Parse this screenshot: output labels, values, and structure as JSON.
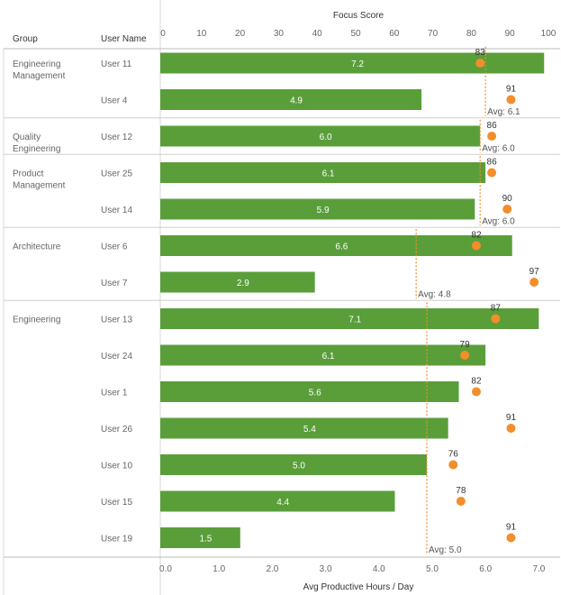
{
  "headers": {
    "group": "Group",
    "user_name": "User Name",
    "top_axis_title": "Focus Score",
    "bottom_axis_title": "Avg Productive Hours / Day"
  },
  "chart_data": {
    "type": "bar",
    "title": "",
    "xlabel": "Avg Productive Hours / Day",
    "x2label": "Focus Score",
    "xlim": [
      0,
      7.3
    ],
    "x2lim": [
      0,
      100
    ],
    "x_ticks": [
      "0.0",
      "1.0",
      "2.0",
      "3.0",
      "4.0",
      "5.0",
      "6.0",
      "7.0"
    ],
    "x2_ticks": [
      "0",
      "10",
      "20",
      "30",
      "40",
      "50",
      "60",
      "70",
      "80",
      "90",
      "100"
    ],
    "colors": {
      "bar": "#5a9e3a",
      "point": "#f28e2b",
      "avg_line": "#f28e2b",
      "grid": "#d9d9d9"
    },
    "groups": [
      {
        "name": "Engineering\nManagement",
        "avg_label": "Avg: 6.1",
        "avg_value": 6.1,
        "users": [
          {
            "user": "User 11",
            "hours": 7.2,
            "hours_label": "7.2",
            "focus": 83,
            "focus_label": "83"
          },
          {
            "user": "User 4",
            "hours": 4.9,
            "hours_label": "4.9",
            "focus": 91,
            "focus_label": "91"
          }
        ]
      },
      {
        "name": "Quality\nEngineering",
        "avg_label": "Avg: 6.0",
        "avg_value": 6.0,
        "users": [
          {
            "user": "User 12",
            "hours": 6.0,
            "hours_label": "6.0",
            "focus": 86,
            "focus_label": "86"
          }
        ]
      },
      {
        "name": "Product\nManagement",
        "avg_label": "Avg: 6.0",
        "avg_value": 6.0,
        "users": [
          {
            "user": "User 25",
            "hours": 6.1,
            "hours_label": "6.1",
            "focus": 86,
            "focus_label": "86"
          },
          {
            "user": "User 14",
            "hours": 5.9,
            "hours_label": "5.9",
            "focus": 90,
            "focus_label": "90"
          }
        ]
      },
      {
        "name": "Architecture",
        "avg_label": "Avg: 4.8",
        "avg_value": 4.8,
        "users": [
          {
            "user": "User 6",
            "hours": 6.6,
            "hours_label": "6.6",
            "focus": 82,
            "focus_label": "82"
          },
          {
            "user": "User 7",
            "hours": 2.9,
            "hours_label": "2.9",
            "focus": 97,
            "focus_label": "97"
          }
        ]
      },
      {
        "name": "Engineering",
        "avg_label": "Avg: 5.0",
        "avg_value": 5.0,
        "users": [
          {
            "user": "User 13",
            "hours": 7.1,
            "hours_label": "7.1",
            "focus": 87,
            "focus_label": "87"
          },
          {
            "user": "User 24",
            "hours": 6.1,
            "hours_label": "6.1",
            "focus": 79,
            "focus_label": "79"
          },
          {
            "user": "User 1",
            "hours": 5.6,
            "hours_label": "5.6",
            "focus": 82,
            "focus_label": "82"
          },
          {
            "user": "User 26",
            "hours": 5.4,
            "hours_label": "5.4",
            "focus": 91,
            "focus_label": "91"
          },
          {
            "user": "User 10",
            "hours": 5.0,
            "hours_label": "5.0",
            "focus": 76,
            "focus_label": "76"
          },
          {
            "user": "User 15",
            "hours": 4.4,
            "hours_label": "4.4",
            "focus": 78,
            "focus_label": "78"
          },
          {
            "user": "User 19",
            "hours": 1.5,
            "hours_label": "1.5",
            "focus": 91,
            "focus_label": "91"
          }
        ]
      }
    ]
  }
}
